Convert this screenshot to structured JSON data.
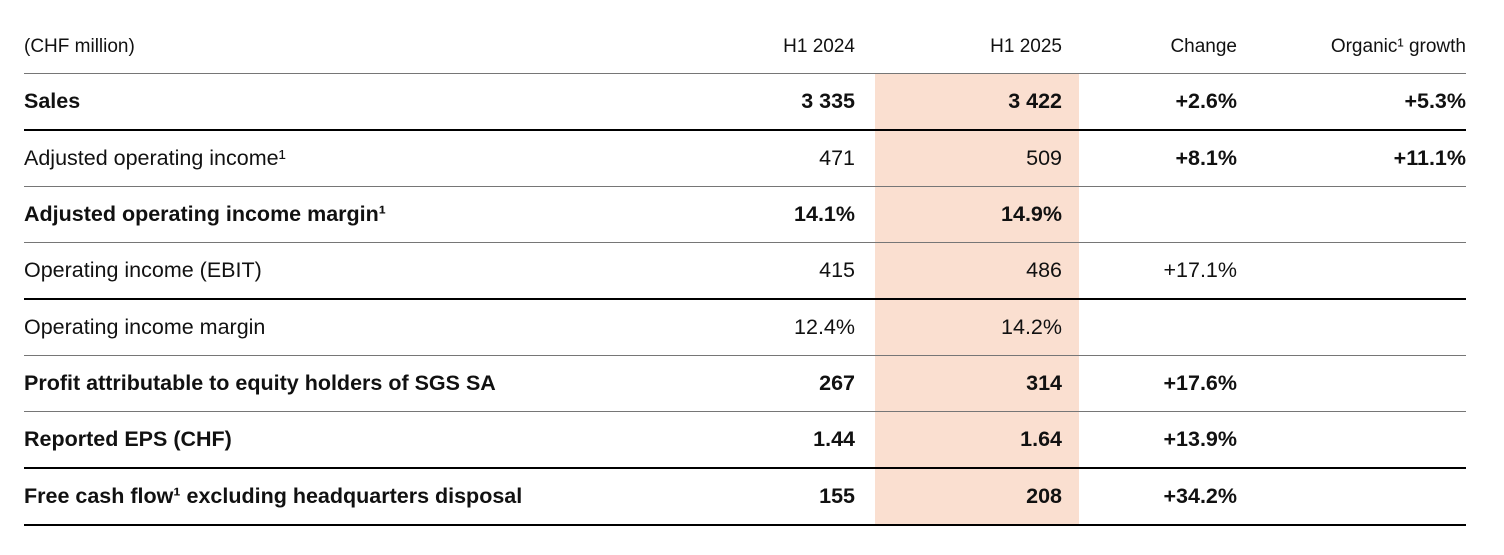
{
  "table": {
    "unit_label": "(CHF million)",
    "highlight_color": "#fadfd0",
    "rule_colors": {
      "light": "#767676",
      "strong": "#000000"
    },
    "columns": {
      "h1_2024": "H1 2024",
      "h1_2025": "H1 2025",
      "change": "Change",
      "organic_growth": "Organic¹ growth"
    },
    "highlighted_column": "H1 2025",
    "rows": [
      {
        "label": "Sales",
        "h1_2024": "3 335",
        "h1_2025": "3 422",
        "change": "+2.6%",
        "organic_growth": "+5.3%",
        "label_bold": true,
        "values_bold": true,
        "change_bold": true,
        "rule_below": "strong"
      },
      {
        "label": "Adjusted operating income¹",
        "h1_2024": "471",
        "h1_2025": "509",
        "change": "+8.1%",
        "organic_growth": "+11.1%",
        "label_bold": false,
        "values_bold": false,
        "change_bold": true,
        "rule_below": "light"
      },
      {
        "label": "Adjusted operating income margin¹",
        "h1_2024": "14.1%",
        "h1_2025": "14.9%",
        "change": "",
        "organic_growth": "",
        "label_bold": true,
        "values_bold": true,
        "change_bold": false,
        "rule_below": "light"
      },
      {
        "label": "Operating income (EBIT)",
        "h1_2024": "415",
        "h1_2025": "486",
        "change": "+17.1%",
        "organic_growth": "",
        "label_bold": false,
        "values_bold": false,
        "change_bold": false,
        "rule_below": "strong"
      },
      {
        "label": "Operating income margin",
        "h1_2024": "12.4%",
        "h1_2025": "14.2%",
        "change": "",
        "organic_growth": "",
        "label_bold": false,
        "values_bold": false,
        "change_bold": false,
        "rule_below": "light"
      },
      {
        "label": "Profit attributable to equity holders of SGS SA",
        "h1_2024": "267",
        "h1_2025": "314",
        "change": "+17.6%",
        "organic_growth": "",
        "label_bold": true,
        "values_bold": true,
        "change_bold": true,
        "rule_below": "light"
      },
      {
        "label": "Reported EPS (CHF)",
        "h1_2024": "1.44",
        "h1_2025": "1.64",
        "change": "+13.9%",
        "organic_growth": "",
        "label_bold": true,
        "values_bold": true,
        "change_bold": true,
        "rule_below": "strong"
      },
      {
        "label": "Free cash flow¹ excluding headquarters disposal",
        "h1_2024": "155",
        "h1_2025": "208",
        "change": "+34.2%",
        "organic_growth": "",
        "label_bold": true,
        "values_bold": true,
        "change_bold": true,
        "rule_below": "strong"
      }
    ]
  }
}
